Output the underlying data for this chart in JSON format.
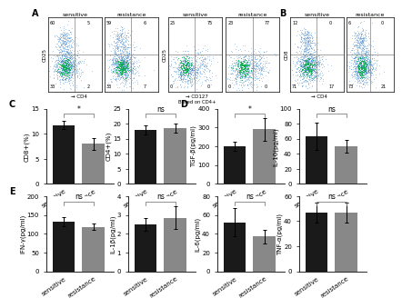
{
  "panel_C": {
    "CD8": {
      "sensitive": 11.7,
      "resistance": 8.0,
      "err_s": 0.8,
      "err_r": 1.2,
      "ylabel": "CD8+(%)",
      "ymax": 15,
      "yticks": [
        0,
        5,
        10,
        15
      ],
      "sig": "*"
    },
    "CD4": {
      "sensitive": 18.0,
      "resistance": 18.5,
      "err_s": 1.5,
      "err_r": 1.5,
      "ylabel": "CD4+(%)",
      "ymax": 25,
      "yticks": [
        0,
        5,
        10,
        15,
        20,
        25
      ],
      "sig": "ns"
    }
  },
  "panel_D": {
    "TGF": {
      "sensitive": 200,
      "resistance": 290,
      "err_s": 25,
      "err_r": 60,
      "ylabel": "TGF-β(pg/ml)",
      "ymax": 400,
      "yticks": [
        0,
        100,
        200,
        300,
        400
      ],
      "sig": "*"
    },
    "IL10": {
      "sensitive": 63,
      "resistance": 50,
      "err_s": 18,
      "err_r": 8,
      "ylabel": "IL-10(pg/ml)",
      "ymax": 100,
      "yticks": [
        0,
        20,
        40,
        60,
        80,
        100
      ],
      "sig": "ns"
    }
  },
  "panel_E": {
    "IFN": {
      "sensitive": 132,
      "resistance": 118,
      "err_s": 12,
      "err_r": 8,
      "ylabel": "IFN-γ(pg/ml)",
      "ymax": 200,
      "yticks": [
        0,
        50,
        100,
        150,
        200
      ],
      "sig": "ns"
    },
    "IL1": {
      "sensitive": 2.5,
      "resistance": 2.85,
      "err_s": 0.35,
      "err_r": 0.6,
      "ylabel": "IL-1β(pg/ml)",
      "ymax": 4,
      "yticks": [
        0,
        1,
        2,
        3,
        4
      ],
      "sig": "ns"
    }
  },
  "panel_D2": {
    "IL6": {
      "sensitive": 52,
      "resistance": 37,
      "err_s": 15,
      "err_r": 7,
      "ylabel": "IL-6(pg/ml)",
      "ymax": 80,
      "yticks": [
        0,
        20,
        40,
        60,
        80
      ],
      "sig": "ns"
    },
    "TNF": {
      "sensitive": 47,
      "resistance": 47,
      "err_s": 8,
      "err_r": 8,
      "ylabel": "TNF-α(pg/ml)",
      "ymax": 60,
      "yticks": [
        0,
        20,
        40,
        60
      ],
      "sig": "ns"
    }
  },
  "flow_A1": {
    "quads": [
      60,
      5,
      33,
      2
    ],
    "seed": 42,
    "ylabel": "CD25",
    "xlabel": "CD4"
  },
  "flow_A2": {
    "quads": [
      59,
      6,
      33,
      7
    ],
    "seed": 55,
    "ylabel": "CD25",
    "xlabel": "CD4"
  },
  "flow_A3": {
    "quads": [
      25,
      75,
      0,
      0
    ],
    "seed": 10,
    "ylabel": "CD25",
    "xlabel": "CD127"
  },
  "flow_A4": {
    "quads": [
      23,
      77,
      0,
      0
    ],
    "seed": 20,
    "ylabel": "CD25",
    "xlabel": "CD127"
  },
  "flow_B1": {
    "quads": [
      12,
      0,
      71,
      17
    ],
    "seed": 30,
    "ylabel": "CD8",
    "xlabel": "CD4"
  },
  "flow_B2": {
    "quads": [
      6,
      0,
      73,
      21
    ],
    "seed": 35,
    "ylabel": "CD8",
    "xlabel": "CD4"
  },
  "bar_color_sensitive": "#1a1a1a",
  "bar_color_resistance": "#888888",
  "tick_fontsize": 5,
  "label_fontsize": 5,
  "sig_fontsize": 5.5
}
